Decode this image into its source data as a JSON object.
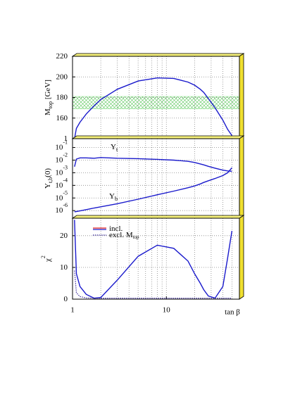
{
  "chart_data": [
    {
      "type": "line",
      "ylabel": {
        "text": "M",
        "sub": "top",
        "rest": " [GeV]"
      },
      "xlim": [
        1,
        60
      ],
      "xgrid": [
        2,
        3,
        4,
        5,
        6,
        7,
        8,
        9,
        10,
        20,
        30,
        40,
        50
      ],
      "ylim": [
        140,
        220
      ],
      "yticks": [
        {
          "value": 140,
          "label": "1"
        },
        160,
        180,
        200,
        220
      ],
      "grid": true,
      "band": {
        "values": [
          169,
          181
        ],
        "color": "#7ee07e"
      },
      "x": [
        1.05,
        1.1,
        1.2,
        1.4,
        1.7,
        2,
        3,
        5,
        8,
        12,
        17,
        20,
        23,
        25,
        28,
        33,
        40,
        45,
        50
      ],
      "series": [
        {
          "color": "#1a1acc",
          "values": [
            140,
            150,
            156,
            164,
            172,
            178,
            188,
            196,
            199,
            198.5,
            195,
            192,
            188,
            185,
            179,
            170,
            158,
            149,
            143
          ]
        }
      ]
    },
    {
      "type": "line",
      "ylabel": {
        "text": "Y",
        "sub": "t,b",
        "rest": "(0)"
      },
      "ylog": true,
      "xlim": [
        1,
        60
      ],
      "xgrid": [
        2,
        3,
        4,
        5,
        6,
        7,
        8,
        9,
        10,
        20,
        30,
        40,
        50
      ],
      "ylim": [
        2.5e-07,
        0.5
      ],
      "grid": true,
      "yticks": [
        {
          "value": 0.1,
          "label": "10",
          "superscript": "-1"
        },
        {
          "value": 0.01,
          "label": "10",
          "superscript": "-2"
        },
        {
          "value": 0.001,
          "label": "10",
          "superscript": "-3"
        },
        {
          "value": 0.0001,
          "label": "10",
          "superscript": "-4"
        },
        {
          "value": 1e-05,
          "label": "10",
          "superscript": "-5"
        },
        {
          "value": 1e-06,
          "label": "10",
          "superscript": "-6"
        }
      ],
      "annotations": [
        {
          "text": "Y",
          "sub": "t"
        },
        {
          "text": "Y",
          "sub": "b"
        }
      ],
      "x": [
        1.05,
        1.1,
        1.2,
        1.4,
        1.7,
        2,
        3,
        5,
        8,
        12,
        17,
        20,
        23,
        25,
        28,
        33,
        40,
        45,
        50
      ],
      "series": [
        {
          "color": "#1a1acc",
          "values": [
            0.003,
            0.012,
            0.015,
            0.015,
            0.014,
            0.016,
            0.014,
            0.013,
            0.0115,
            0.01,
            0.008,
            0.0065,
            0.005,
            0.0042,
            0.0032,
            0.0023,
            0.0016,
            0.0014,
            0.0013
          ]
        },
        {
          "color": "#1a1acc",
          "values": [
            8e-07,
            8.5e-07,
            9.5e-07,
            1.2e-06,
            1.6e-06,
            2e-06,
            3.5e-06,
            8e-06,
            1.8e-05,
            3.5e-05,
            6.5e-05,
            9e-05,
            0.00013,
            0.00017,
            0.00023,
            0.00035,
            0.0006,
            0.001,
            0.0025
          ]
        }
      ]
    },
    {
      "type": "line",
      "ylabel": {
        "text": "χ",
        "sup": "2"
      },
      "xlim": [
        1,
        60
      ],
      "xgrid": [
        2,
        3,
        4,
        5,
        6,
        7,
        8,
        9,
        10,
        20,
        30,
        40,
        50
      ],
      "xticks": [
        1,
        10
      ],
      "xlabel": "tan β",
      "ylim": [
        0,
        25.5
      ],
      "yticks": [
        0,
        10,
        20
      ],
      "grid": true,
      "x": [
        1.05,
        1.1,
        1.2,
        1.4,
        1.7,
        2,
        3,
        5,
        8,
        12,
        17,
        20,
        23,
        25,
        28,
        33,
        40,
        45,
        50
      ],
      "series": [
        {
          "name": "incl.",
          "color": "#1a1acc",
          "legend_colors": [
            "#e02020",
            "#1a1acc"
          ],
          "values": [
            25,
            8,
            4,
            1.5,
            0.3,
            0.5,
            6,
            13.5,
            17,
            16,
            12,
            8,
            5,
            3,
            1,
            0.3,
            4,
            13,
            21.5
          ]
        },
        {
          "name": "excl. M",
          "name_sub": "top",
          "color": "#3a2a9a",
          "dash": true,
          "values": [
            9,
            2,
            0.8,
            0.4,
            0.3,
            0.3,
            0.3,
            0.3,
            0.3,
            0.3,
            0.3,
            0.3,
            0.3,
            0.3,
            0.3,
            0.3,
            0.3,
            0.3,
            0.3
          ]
        }
      ]
    }
  ]
}
